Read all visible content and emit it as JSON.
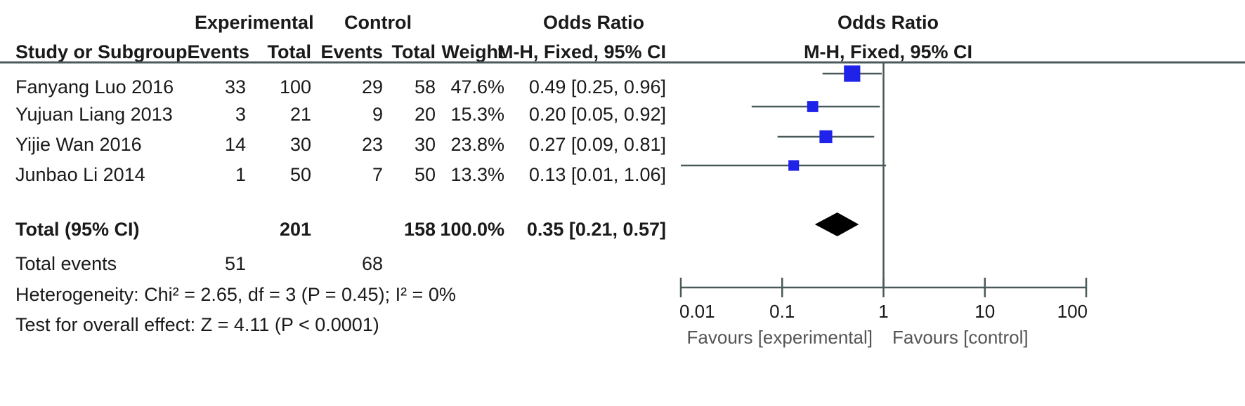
{
  "chart_data": {
    "type": "forest",
    "header": {
      "group1": "Experimental",
      "group2": "Control",
      "or_title": "Odds Ratio",
      "or_method": "M-H, Fixed, 95% CI",
      "study_col": "Study or Subgroup",
      "events": "Events",
      "total": "Total",
      "weight": "Weight",
      "plot_title": "Odds Ratio",
      "plot_method": "M-H, Fixed, 95% CI"
    },
    "studies": [
      {
        "name": "Fanyang Luo 2016",
        "e_events": "33",
        "e_total": "100",
        "c_events": "29",
        "c_total": "58",
        "weight": "47.6%",
        "or_text": "0.49 [0.25, 0.96]",
        "or": 0.49,
        "lo": 0.25,
        "hi": 0.96,
        "w": 47.6
      },
      {
        "name": "Yujuan Liang 2013",
        "e_events": "3",
        "e_total": "21",
        "c_events": "9",
        "c_total": "20",
        "weight": "15.3%",
        "or_text": "0.20 [0.05, 0.92]",
        "or": 0.2,
        "lo": 0.05,
        "hi": 0.92,
        "w": 15.3
      },
      {
        "name": "Yijie Wan 2016",
        "e_events": "14",
        "e_total": "30",
        "c_events": "23",
        "c_total": "30",
        "weight": "23.8%",
        "or_text": "0.27 [0.09, 0.81]",
        "or": 0.27,
        "lo": 0.09,
        "hi": 0.81,
        "w": 23.8
      },
      {
        "name": "Junbao Li 2014",
        "e_events": "1",
        "e_total": "50",
        "c_events": "7",
        "c_total": "50",
        "weight": "13.3%",
        "or_text": "0.13 [0.01, 1.06]",
        "or": 0.13,
        "lo": 0.01,
        "hi": 1.06,
        "w": 13.3
      }
    ],
    "total": {
      "label": "Total (95% CI)",
      "e_total": "201",
      "c_total": "158",
      "weight": "100.0%",
      "or_text": "0.35 [0.21, 0.57]",
      "or": 0.35,
      "lo": 0.21,
      "hi": 0.57
    },
    "total_events": {
      "label": "Total events",
      "e_events": "51",
      "c_events": "68"
    },
    "heterogeneity": "Heterogeneity: Chi² = 2.65, df = 3 (P = 0.45); I² = 0%",
    "overall_effect": "Test for overall effect: Z = 4.11 (P < 0.0001)",
    "x_scale": "log",
    "x_ticks": [
      0.01,
      0.1,
      1,
      10,
      100
    ],
    "x_tick_labels": [
      "0.01",
      "0.1",
      "1",
      "10",
      "100"
    ],
    "xlim": [
      0.01,
      100
    ],
    "favours_left": "Favours [experimental]",
    "favours_right": "Favours [control]",
    "colors": {
      "study_marker": "#1f22e8",
      "summary": "#000000",
      "lines": "#4a5a5a"
    }
  }
}
